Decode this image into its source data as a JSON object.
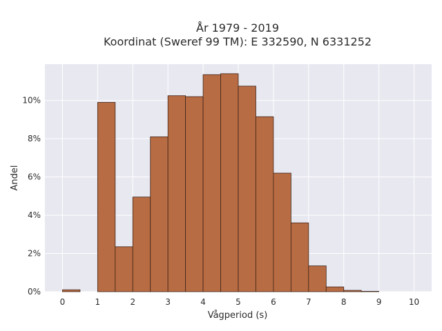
{
  "chart_data": {
    "type": "bar",
    "title_line1": "År 1979 - 2019",
    "title_line2": "Koordinat (Sweref 99 TM): E 332590, N 6331252",
    "xlabel": "Vågperiod (s)",
    "ylabel": "Andel",
    "bin_width": 0.5,
    "bins": [
      {
        "x0": 0.0,
        "value": 0.1
      },
      {
        "x0": 0.5,
        "value": 0.0
      },
      {
        "x0": 1.0,
        "value": 9.9
      },
      {
        "x0": 1.5,
        "value": 2.35
      },
      {
        "x0": 2.0,
        "value": 4.95
      },
      {
        "x0": 2.5,
        "value": 8.1
      },
      {
        "x0": 3.0,
        "value": 10.25
      },
      {
        "x0": 3.5,
        "value": 10.2
      },
      {
        "x0": 4.0,
        "value": 11.35
      },
      {
        "x0": 4.5,
        "value": 11.4
      },
      {
        "x0": 5.0,
        "value": 10.75
      },
      {
        "x0": 5.5,
        "value": 9.15
      },
      {
        "x0": 6.0,
        "value": 6.2
      },
      {
        "x0": 6.5,
        "value": 3.6
      },
      {
        "x0": 7.0,
        "value": 1.35
      },
      {
        "x0": 7.5,
        "value": 0.25
      },
      {
        "x0": 8.0,
        "value": 0.07
      },
      {
        "x0": 8.5,
        "value": 0.02
      }
    ],
    "xlim": [
      -0.5,
      10.5
    ],
    "ylim": [
      0,
      11.9
    ],
    "x_ticks": [
      "0",
      "1",
      "2",
      "3",
      "4",
      "5",
      "6",
      "7",
      "8",
      "9",
      "10"
    ],
    "y_ticks": [
      "0%",
      "2%",
      "4%",
      "6%",
      "8%",
      "10%"
    ],
    "grid": true,
    "colors": {
      "bar_fill": "#b86c43",
      "bar_edge": "#3d2418",
      "plot_bg": "#e8e8f1",
      "grid": "#ffffff"
    }
  }
}
